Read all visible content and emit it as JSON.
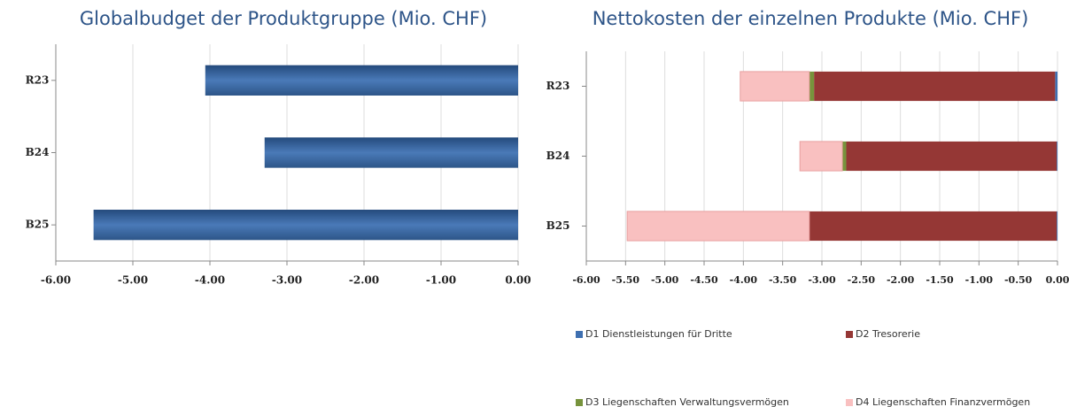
{
  "chart_data": [
    {
      "type": "bar",
      "orientation": "horizontal",
      "title": "Globalbudget der Produktgruppe (Mio. CHF)",
      "categories": [
        "R23",
        "B24",
        "B25"
      ],
      "values": [
        -4.06,
        -3.29,
        -5.51
      ],
      "color": "#3a669f",
      "xlim": [
        -6,
        0
      ],
      "xticks": [
        {
          "value": -6,
          "label": "-6.00"
        },
        {
          "value": -5,
          "label": "-5.00"
        },
        {
          "value": -4,
          "label": "-4.00"
        },
        {
          "value": -3,
          "label": "-3.00"
        },
        {
          "value": -2,
          "label": "-2.00"
        },
        {
          "value": -1,
          "label": "-1.00"
        },
        {
          "value": 0,
          "label": "0.00"
        }
      ],
      "grid": true
    },
    {
      "type": "stacked_bar",
      "orientation": "horizontal",
      "title": "Nettokosten der einzelnen Produkte (Mio. CHF)",
      "categories": [
        "R23",
        "B24",
        "B25"
      ],
      "series": [
        {
          "name": "D1 Dienstleistungen für Dritte",
          "color": "#3e6fb0",
          "values": [
            -0.03,
            -0.01,
            -0.01
          ]
        },
        {
          "name": "D2 Tresorerie",
          "color": "#953735",
          "values": [
            -3.07,
            -2.68,
            -3.15
          ]
        },
        {
          "name": "D3 Liegenschaften Verwaltungsvermögen",
          "color": "#77933c",
          "values": [
            -0.06,
            -0.05,
            0
          ]
        },
        {
          "name": "D4 Liegenschaften Finanzvermögen",
          "color": "#f9c0c0",
          "values": [
            -0.88,
            -0.54,
            -2.32
          ]
        }
      ],
      "xlim": [
        -6,
        0
      ],
      "xticks": [
        {
          "value": -6,
          "label": "-6.00"
        },
        {
          "value": -5.5,
          "label": "-5.50"
        },
        {
          "value": -5,
          "label": "-5.00"
        },
        {
          "value": -4.5,
          "label": "-4.50"
        },
        {
          "value": -4,
          "label": "-4.00"
        },
        {
          "value": -3.5,
          "label": "-3.50"
        },
        {
          "value": -3,
          "label": "-3.00"
        },
        {
          "value": -2.5,
          "label": "-2.50"
        },
        {
          "value": -2,
          "label": "-2.00"
        },
        {
          "value": -1.5,
          "label": "-1.50"
        },
        {
          "value": -1,
          "label": "-1.00"
        },
        {
          "value": -0.5,
          "label": "-0.50"
        },
        {
          "value": 0,
          "label": "0.00"
        }
      ],
      "grid": true
    }
  ]
}
